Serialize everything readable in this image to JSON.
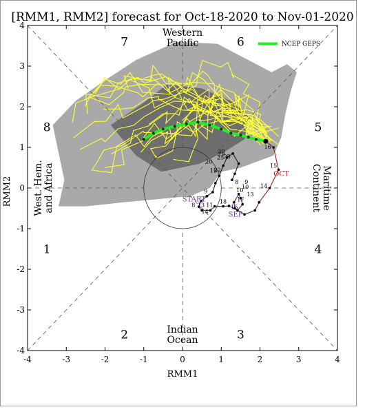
{
  "chart_data": {
    "type": "scatter",
    "title": "[RMM1, RMM2] forecast for Oct-18-2020 to Nov-01-2020",
    "xlabel": "RMM1",
    "ylabel": "RMM2",
    "xlim": [
      -4,
      4
    ],
    "ylim": [
      -4,
      4
    ],
    "xticks": [
      "-4",
      "-3",
      "-2",
      "-1",
      "0",
      "1",
      "2",
      "3",
      "4"
    ],
    "yticks": [
      "-4",
      "-3",
      "-2",
      "-1",
      "0",
      "1",
      "2",
      "3",
      "4"
    ],
    "grid": false,
    "legend_position": "top-right",
    "phase_labels": [
      {
        "text": "1",
        "x": -3.5,
        "y": -1.5
      },
      {
        "text": "2",
        "x": -1.5,
        "y": -3.6
      },
      {
        "text": "3",
        "x": 1.5,
        "y": -3.6
      },
      {
        "text": "4",
        "x": 3.5,
        "y": -1.5
      },
      {
        "text": "5",
        "x": 3.5,
        "y": 1.5
      },
      {
        "text": "6",
        "x": 1.5,
        "y": 3.6
      },
      {
        "text": "7",
        "x": -1.5,
        "y": 3.6
      },
      {
        "text": "8",
        "x": -3.5,
        "y": 1.5
      }
    ],
    "region_labels": [
      {
        "lines": [
          "Western",
          "Pacific"
        ],
        "x": 0.0,
        "y": 3.7,
        "rotate": 0
      },
      {
        "lines": [
          "Indian",
          "Ocean"
        ],
        "x": 0.0,
        "y": -3.6,
        "rotate": 0
      },
      {
        "lines": [
          "West. Hem.",
          "and Africa"
        ],
        "x": -3.6,
        "y": 0.0,
        "rotate": -90
      },
      {
        "lines": [
          "Maritime",
          "Continent"
        ],
        "x": 3.6,
        "y": 0.0,
        "rotate": 90
      }
    ],
    "month_labels": [
      {
        "text": "START",
        "x": 0.3,
        "y": -0.33,
        "color": "#6a3d9a"
      },
      {
        "text": "SEP",
        "x": 1.37,
        "y": -0.7,
        "color": "#6a3d9a"
      },
      {
        "text": "OCT",
        "x": 2.55,
        "y": 0.3,
        "color": "#b22222"
      }
    ],
    "series": [
      {
        "name": "",
        "color": "#5b2c8c",
        "points": [
          [
            0.63,
            -0.2
          ],
          [
            0.48,
            -0.32
          ],
          [
            0.42,
            -0.46
          ],
          [
            0.5,
            -0.55
          ],
          [
            0.72,
            -0.55
          ],
          [
            0.83,
            -0.45
          ],
          [
            1.05,
            -0.45
          ],
          [
            1.2,
            -0.44
          ],
          [
            1.42,
            -0.55
          ],
          [
            1.55,
            -0.4
          ],
          [
            1.5,
            -0.25
          ],
          [
            1.45,
            -0.15
          ],
          [
            1.33,
            -0.35
          ],
          [
            1.35,
            -0.5
          ],
          [
            1.6,
            -0.65
          ],
          [
            1.87,
            -0.55
          ],
          [
            1.98,
            -0.35
          ]
        ],
        "labels": [
          {
            "text": "9",
            "x": 0.6,
            "y": -0.13
          },
          {
            "text": "8",
            "x": 0.28,
            "y": -0.47
          },
          {
            "text": "13",
            "x": 0.48,
            "y": -0.47
          },
          {
            "text": "11",
            "x": 0.7,
            "y": -0.47
          },
          {
            "text": "14",
            "x": 0.58,
            "y": -0.63
          },
          {
            "text": "15",
            "x": 1.34,
            "y": -0.52
          },
          {
            "text": "17",
            "x": 1.5,
            "y": -0.33
          },
          {
            "text": "18",
            "x": 1.05,
            "y": -0.38
          },
          {
            "text": "10",
            "x": 1.48,
            "y": -0.1
          }
        ]
      },
      {
        "name": "",
        "color": "#a52a2a",
        "points": [
          [
            1.98,
            -0.35
          ],
          [
            2.25,
            0.0
          ],
          [
            2.48,
            0.45
          ],
          [
            2.35,
            1.0
          ],
          [
            2.15,
            1.15
          ]
        ],
        "labels": [
          {
            "text": "13",
            "x": 1.75,
            "y": -0.2
          },
          {
            "text": "14",
            "x": 2.1,
            "y": 0.0
          },
          {
            "text": "15",
            "x": 2.35,
            "y": 0.5
          },
          {
            "text": "16",
            "x": 2.2,
            "y": 0.97
          },
          {
            "text": "8",
            "x": 1.4,
            "y": 0.1
          },
          {
            "text": "9",
            "x": 1.65,
            "y": 0.1
          },
          {
            "text": "10",
            "x": 1.62,
            "y": -0.02
          }
        ]
      },
      {
        "name": "",
        "color": "#2a2a2a",
        "points": [
          [
            0.63,
            -0.2
          ],
          [
            0.78,
            -0.1
          ],
          [
            0.85,
            0.12
          ],
          [
            0.95,
            0.3
          ],
          [
            1.05,
            0.55
          ],
          [
            1.15,
            0.75
          ],
          [
            1.3,
            0.85
          ],
          [
            1.45,
            0.6
          ],
          [
            1.35,
            0.35
          ],
          [
            1.28,
            0.2
          ]
        ],
        "labels": [
          {
            "text": "19",
            "x": 0.8,
            "y": 0.38
          },
          {
            "text": "20",
            "x": 0.68,
            "y": 0.6
          },
          {
            "text": "22",
            "x": 0.9,
            "y": 0.4
          },
          {
            "text": "25",
            "x": 0.98,
            "y": 0.7
          },
          {
            "text": "29",
            "x": 1.0,
            "y": 0.78
          },
          {
            "text": "30",
            "x": 1.0,
            "y": 0.86
          },
          {
            "text": "28",
            "x": 1.15,
            "y": 0.73
          }
        ]
      },
      {
        "name": "NCEP GEPS",
        "color": "#22ee22",
        "points": [
          [
            2.15,
            1.15
          ],
          [
            1.9,
            1.2
          ],
          [
            1.7,
            1.25
          ],
          [
            1.5,
            1.3
          ],
          [
            1.25,
            1.35
          ],
          [
            1.0,
            1.45
          ],
          [
            0.7,
            1.55
          ],
          [
            0.4,
            1.62
          ],
          [
            0.1,
            1.58
          ],
          [
            -0.2,
            1.52
          ],
          [
            -0.5,
            1.45
          ],
          [
            -0.75,
            1.35
          ],
          [
            -1.0,
            1.2
          ]
        ]
      }
    ]
  }
}
